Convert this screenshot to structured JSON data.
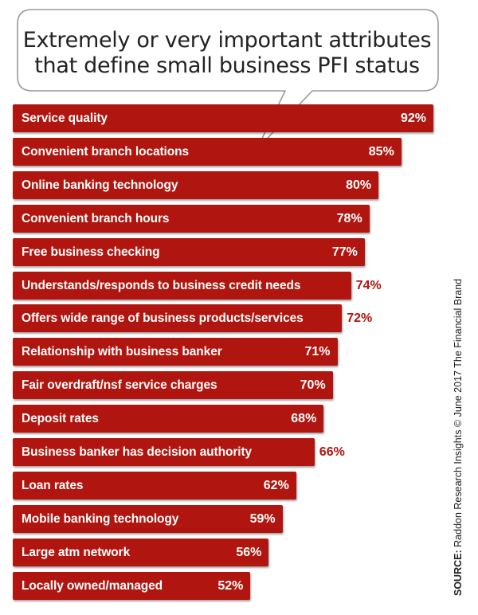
{
  "chart_data": {
    "type": "bar",
    "orientation": "horizontal",
    "title": "Extremely or very important attributes that define small business PFI status",
    "title_lines": [
      "Extremely or very important attributes",
      "that define small business PFI status"
    ],
    "categories": [
      "Service quality",
      "Convenient branch locations",
      "Online banking technology",
      "Convenient branch hours",
      "Free business checking",
      "Understands/responds to business credit needs",
      "Offers wide range of business products/services",
      "Relationship with business banker",
      "Fair overdraft/nsf service charges",
      "Deposit rates",
      "Business banker has decision authority",
      "Loan rates",
      "Mobile banking technology",
      "Large atm network",
      "Locally owned/managed"
    ],
    "values": [
      92,
      85,
      80,
      78,
      77,
      74,
      72,
      71,
      70,
      68,
      66,
      62,
      59,
      56,
      52
    ],
    "value_labels": [
      "92%",
      "85%",
      "80%",
      "78%",
      "77%",
      "74%",
      "72%",
      "71%",
      "70%",
      "68%",
      "66%",
      "62%",
      "59%",
      "56%",
      "52%"
    ],
    "value_label_outside": [
      false,
      false,
      false,
      false,
      false,
      true,
      true,
      false,
      false,
      false,
      true,
      false,
      false,
      false,
      false
    ],
    "unit": "%",
    "xlabel": "",
    "ylabel": "",
    "grid": false,
    "legend": "none"
  },
  "source": {
    "label": "SOURCE:",
    "text": "Raddon Research Insights © June 2017 The Financial Brand"
  },
  "colors": {
    "bar": "#b0160f",
    "bar_label": "#ffffff",
    "outside_value": "#b0160f",
    "callout_border": "#999999",
    "callout_fill": "#ffffff",
    "title": "#222222"
  }
}
